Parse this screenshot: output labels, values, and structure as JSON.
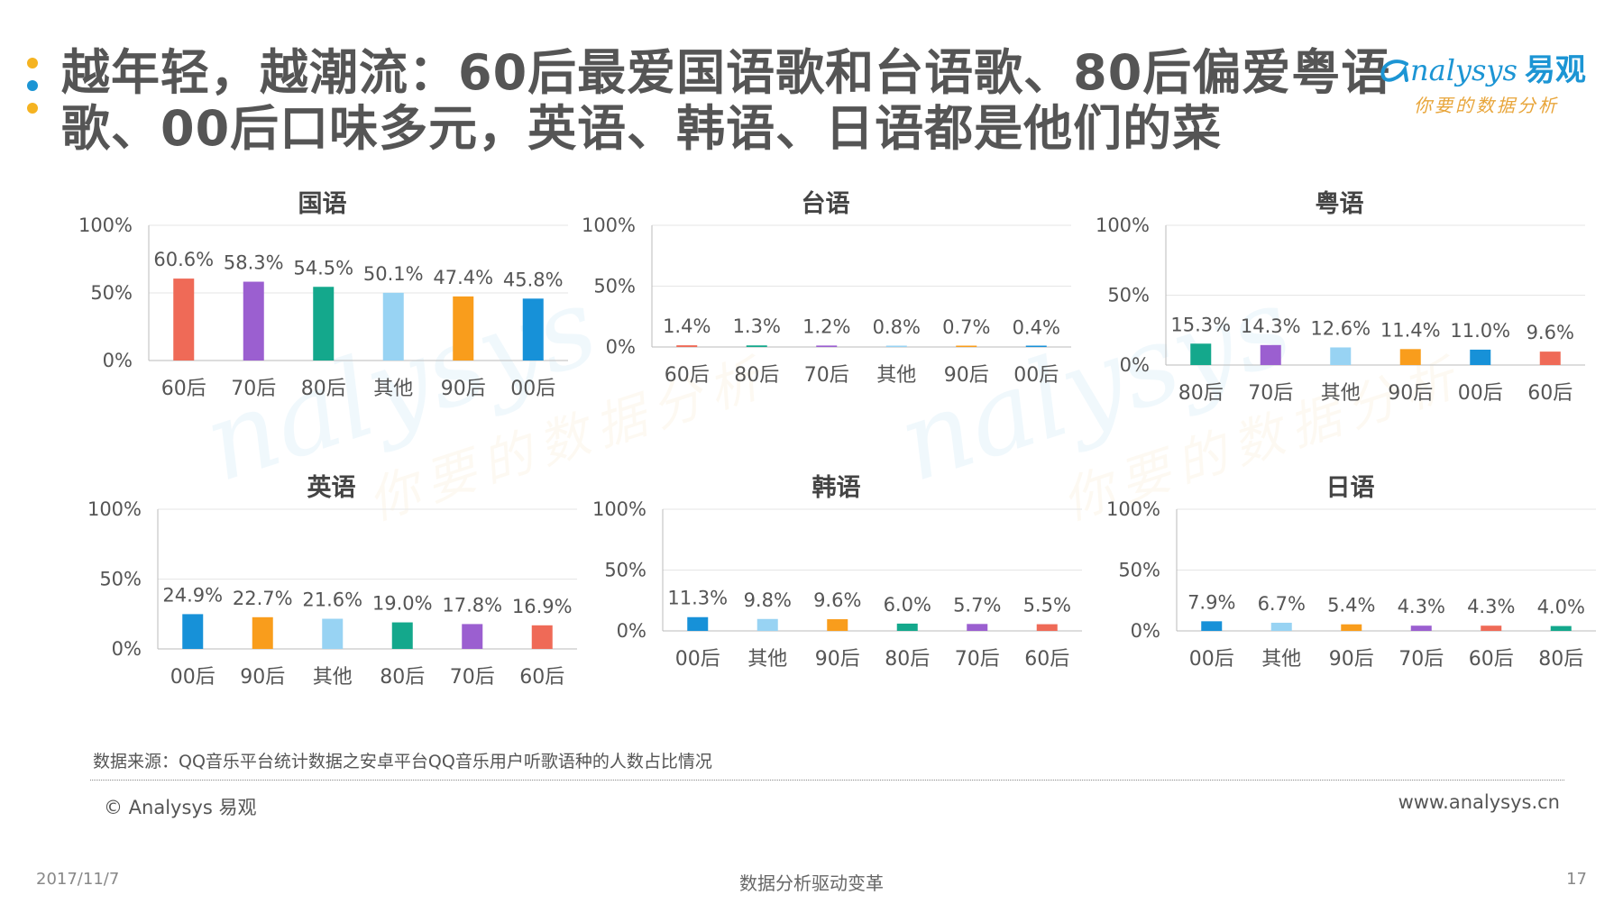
{
  "title": "越年轻，越潮流：60后最爱国语歌和台语歌、80后偏爱粤语歌、00后口味多元，英语、韩语、日语都是他们的菜",
  "logo": {
    "brand": "nalysys",
    "brand_cn": "易观",
    "tagline": "你要的数据分析"
  },
  "watermark": {
    "brand": "nalysys",
    "tagline": "你要的数据分析"
  },
  "colors": {
    "60后": "#ef6a57",
    "70后": "#9b5fd0",
    "80后": "#14a88c",
    "其他": "#98d3f3",
    "90后": "#f99d1c",
    "00后": "#1791d8",
    "bullet_orange": "#f5b321",
    "bullet_blue": "#1c95d4"
  },
  "chart_data": [
    {
      "type": "bar",
      "title": "国语",
      "yticks": [
        "100%",
        "50%",
        "0%"
      ],
      "ylim": [
        0,
        100
      ],
      "categories": [
        "60后",
        "70后",
        "80后",
        "其他",
        "90后",
        "00后"
      ],
      "values": [
        60.6,
        58.3,
        54.5,
        50.1,
        47.4,
        45.8
      ],
      "labels": [
        "60.6%",
        "58.3%",
        "54.5%",
        "50.1%",
        "47.4%",
        "45.8%"
      ]
    },
    {
      "type": "bar",
      "title": "台语",
      "yticks": [
        "100%",
        "50%",
        "0%"
      ],
      "ylim": [
        0,
        100
      ],
      "categories": [
        "60后",
        "80后",
        "70后",
        "其他",
        "90后",
        "00后"
      ],
      "values": [
        1.4,
        1.3,
        1.2,
        0.8,
        0.7,
        0.4
      ],
      "labels": [
        "1.4%",
        "1.3%",
        "1.2%",
        "0.8%",
        "0.7%",
        "0.4%"
      ]
    },
    {
      "type": "bar",
      "title": "粤语",
      "yticks": [
        "100%",
        "50%",
        "0%"
      ],
      "ylim": [
        0,
        100
      ],
      "categories": [
        "80后",
        "70后",
        "其他",
        "90后",
        "00后",
        "60后"
      ],
      "values": [
        15.3,
        14.3,
        12.6,
        11.4,
        11.0,
        9.6
      ],
      "labels": [
        "15.3%",
        "14.3%",
        "12.6%",
        "11.4%",
        "11.0%",
        "9.6%"
      ]
    },
    {
      "type": "bar",
      "title": "英语",
      "yticks": [
        "100%",
        "50%",
        "0%"
      ],
      "ylim": [
        0,
        100
      ],
      "categories": [
        "00后",
        "90后",
        "其他",
        "80后",
        "70后",
        "60后"
      ],
      "values": [
        24.9,
        22.7,
        21.6,
        19.0,
        17.8,
        16.9
      ],
      "labels": [
        "24.9%",
        "22.7%",
        "21.6%",
        "19.0%",
        "17.8%",
        "16.9%"
      ]
    },
    {
      "type": "bar",
      "title": "韩语",
      "yticks": [
        "100%",
        "50%",
        "0%"
      ],
      "ylim": [
        0,
        100
      ],
      "categories": [
        "00后",
        "其他",
        "90后",
        "80后",
        "70后",
        "60后"
      ],
      "values": [
        11.3,
        9.8,
        9.6,
        6.0,
        5.7,
        5.5
      ],
      "labels": [
        "11.3%",
        "9.8%",
        "9.6%",
        "6.0%",
        "5.7%",
        "5.5%"
      ]
    },
    {
      "type": "bar",
      "title": "日语",
      "yticks": [
        "100%",
        "50%",
        "0%"
      ],
      "ylim": [
        0,
        100
      ],
      "categories": [
        "00后",
        "其他",
        "90后",
        "70后",
        "60后",
        "80后"
      ],
      "values": [
        7.9,
        6.7,
        5.4,
        4.3,
        4.3,
        4.0
      ],
      "labels": [
        "7.9%",
        "6.7%",
        "5.4%",
        "4.3%",
        "4.3%",
        "4.0%"
      ]
    }
  ],
  "source": "数据来源：QQ音乐平台统计数据之安卓平台QQ音乐用户听歌语种的人数占比情况",
  "copyright": "© Analysys 易观",
  "website": "www.analysys.cn",
  "footer": {
    "date": "2017/11/7",
    "center": "数据分析驱动变革",
    "page": "17"
  }
}
